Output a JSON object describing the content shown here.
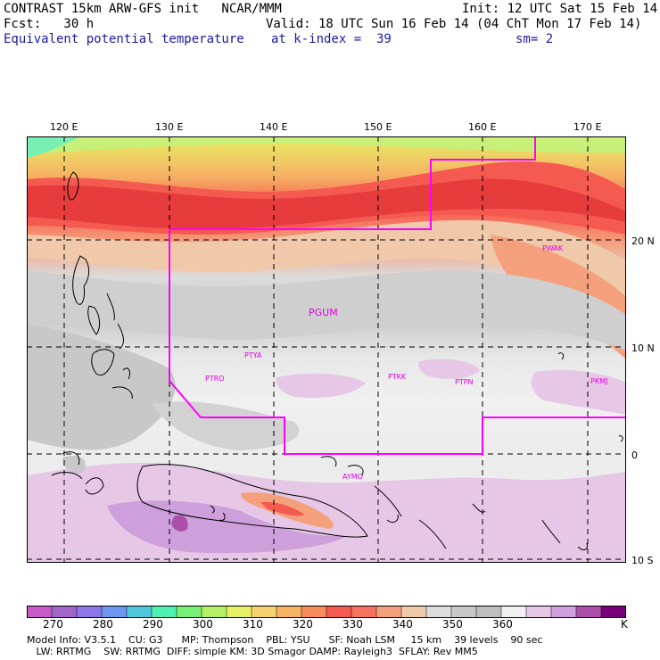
{
  "header": {
    "title": "CONTRAST 15km ARW-GFS init   NCAR/MMM",
    "init": "Init: 12 UTC Sat 15 Feb 14",
    "fcst": "Fcst:   30 h",
    "valid": "Valid: 18 UTC Sun 16 Feb 14 (04 ChT Mon 17 Feb 14)",
    "field": "Equivalent potential temperature",
    "kindex": "at k-index =  39",
    "sm": "sm= 2"
  },
  "axes": {
    "lon_labels": [
      "120 E",
      "130 E",
      "140 E",
      "150 E",
      "160 E",
      "170 E"
    ],
    "lat_labels": [
      "20 N",
      "10 N",
      "0",
      "10 S"
    ]
  },
  "stations": [
    {
      "label": "PGUM"
    },
    {
      "label": "PTYA"
    },
    {
      "label": "PTRO"
    },
    {
      "label": "PTKK"
    },
    {
      "label": "PTPN"
    },
    {
      "label": "PKMJ"
    },
    {
      "label": "PWAK"
    },
    {
      "label": "AYMO"
    }
  ],
  "colorbar": {
    "colors": [
      "#c85ac8",
      "#a066c8",
      "#8c78e6",
      "#6e96f0",
      "#50c8dc",
      "#50f0b4",
      "#78f078",
      "#b4f064",
      "#e6f064",
      "#f5d26e",
      "#f5b464",
      "#f58c5a",
      "#f55a50",
      "#f5735f",
      "#f5a07d",
      "#f0c8aa",
      "#dcdcdc",
      "#c8c8c8",
      "#bebebe",
      "#f0f0f0",
      "#e6c8e6",
      "#cda0dc",
      "#aa50aa",
      "#780078"
    ],
    "labels": [
      "270",
      "280",
      "290",
      "300",
      "310",
      "320",
      "330",
      "340",
      "350",
      "360",
      "K"
    ]
  },
  "footer": {
    "line1": "Model Info: V3.5.1    CU: G3      MP: Thompson    PBL: YSU      SF: Noah LSM     15 km    39 levels    90 sec",
    "line2": "   LW: RRTMG    SW: RRTMG  DIFF: simple KM: 3D Smagor DAMP: Rayleigh3  SFLAY: Rev MM5"
  }
}
